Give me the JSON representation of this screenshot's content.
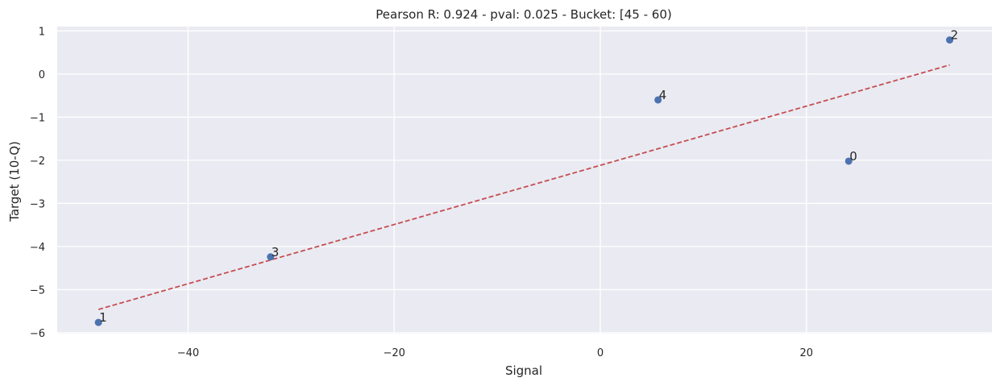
{
  "chart_data": {
    "type": "scatter",
    "title": "Pearson R: 0.924 - pval: 0.025 - Bucket: [45 - 60)",
    "xlabel": "Signal",
    "ylabel": "Target (10-Q)",
    "xlim": [
      -52.7,
      38.0
    ],
    "ylim": [
      -6.02,
      1.1
    ],
    "xticks": [
      -40,
      -20,
      0,
      20
    ],
    "xtick_labels": [
      "−40",
      "−20",
      "0",
      "20"
    ],
    "yticks": [
      1,
      0,
      -1,
      -2,
      -3,
      -4,
      -5,
      -6
    ],
    "ytick_labels": [
      "1",
      "0",
      "−1",
      "−2",
      "−3",
      "−4",
      "−5",
      "−6"
    ],
    "grid": true,
    "points": [
      {
        "label": "0",
        "x": 24.1,
        "y": -2.02
      },
      {
        "label": "1",
        "x": -48.7,
        "y": -5.76
      },
      {
        "label": "2",
        "x": 33.9,
        "y": 0.79
      },
      {
        "label": "3",
        "x": -32.0,
        "y": -4.24
      },
      {
        "label": "4",
        "x": 5.6,
        "y": -0.6
      }
    ],
    "fit_line": {
      "x": [
        -48.7,
        33.9
      ],
      "y": [
        -5.46,
        0.21
      ],
      "style": "dashed"
    },
    "colors": {
      "points": "#4c72b0",
      "fit_line": "#c44e52",
      "background": "#eaeaf2",
      "grid": "#ffffff"
    }
  }
}
